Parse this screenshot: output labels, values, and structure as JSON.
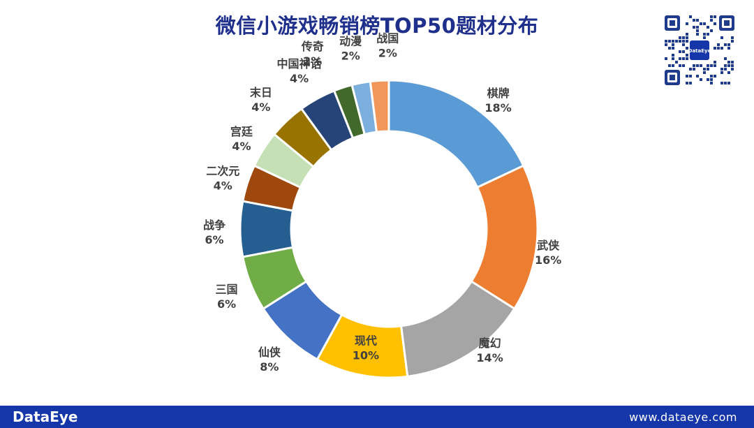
{
  "page": {
    "title": "微信小游戏畅销榜TOP50题材分布",
    "footer_brand": "DataEye",
    "footer_url": "www.dataeye.com",
    "qr_badge": "DataEye"
  },
  "chart_data": {
    "type": "pie",
    "donut": true,
    "title": "微信小游戏畅销榜TOP50题材分布",
    "slices": [
      {
        "name": "棋牌",
        "value": 18,
        "label": "18%",
        "color": "#5b9bd5"
      },
      {
        "name": "武侠",
        "value": 16,
        "label": "16%",
        "color": "#ed7d31"
      },
      {
        "name": "魔幻",
        "value": 14,
        "label": "14%",
        "color": "#a5a5a5"
      },
      {
        "name": "现代",
        "value": 10,
        "label": "10%",
        "color": "#ffc000"
      },
      {
        "name": "仙侠",
        "value": 8,
        "label": "8%",
        "color": "#4472c4"
      },
      {
        "name": "三国",
        "value": 6,
        "label": "6%",
        "color": "#70ad47"
      },
      {
        "name": "战争",
        "value": 6,
        "label": "6%",
        "color": "#255e91"
      },
      {
        "name": "二次元",
        "value": 4,
        "label": "4%",
        "color": "#9e480e"
      },
      {
        "name": "宫廷",
        "value": 4,
        "label": "4%",
        "color": "#c5e0b4"
      },
      {
        "name": "末日",
        "value": 4,
        "label": "4%",
        "color": "#997300"
      },
      {
        "name": "中国神话",
        "value": 4,
        "label": "4%",
        "color": "#264478"
      },
      {
        "name": "传奇",
        "value": 2,
        "label": "2%",
        "color": "#43682b"
      },
      {
        "name": "动漫",
        "value": 2,
        "label": "2%",
        "color": "#7cafdd"
      },
      {
        "name": "战国",
        "value": 2,
        "label": "2%",
        "color": "#f1975a"
      }
    ]
  }
}
